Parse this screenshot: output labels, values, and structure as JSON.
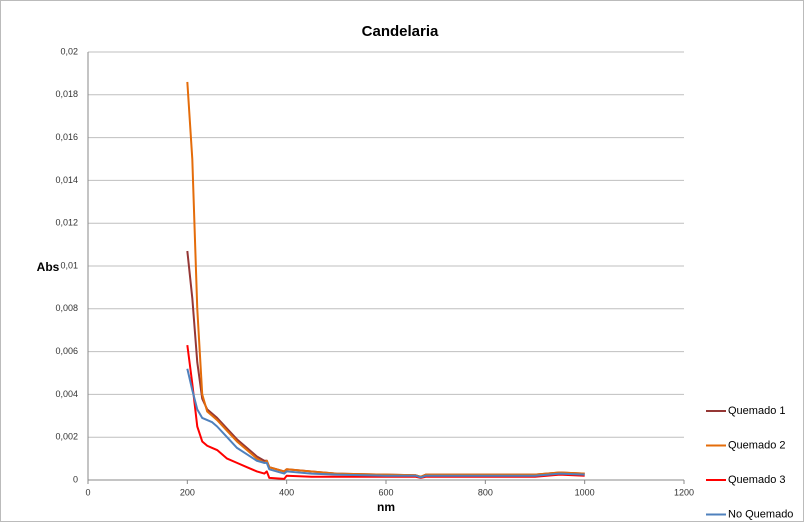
{
  "chart_data": {
    "type": "line",
    "title": "Candelaria",
    "xlabel": "nm",
    "ylabel": "Abs",
    "x": [
      200,
      210,
      220,
      230,
      240,
      250,
      260,
      280,
      300,
      320,
      340,
      355,
      360,
      365,
      395,
      400,
      450,
      500,
      600,
      660,
      670,
      680,
      700,
      800,
      900,
      950,
      1000
    ],
    "series": [
      {
        "name": "Quemado 1",
        "color": "#953735",
        "values": [
          0.0107,
          0.0085,
          0.0055,
          0.0038,
          0.0033,
          0.0031,
          0.0029,
          0.0024,
          0.0019,
          0.0015,
          0.0011,
          0.0009,
          0.0009,
          0.0006,
          0.0004,
          0.0005,
          0.0004,
          0.0003,
          0.00025,
          0.00022,
          0.00015,
          0.00025,
          0.00025,
          0.00025,
          0.00025,
          0.00035,
          0.0003
        ]
      },
      {
        "name": "Quemado 2",
        "color": "#e46c0a",
        "values": [
          0.0186,
          0.015,
          0.008,
          0.004,
          0.0032,
          0.003,
          0.0028,
          0.0023,
          0.0018,
          0.0014,
          0.001,
          0.0008,
          0.0009,
          0.0006,
          0.0004,
          0.0005,
          0.0004,
          0.0003,
          0.00025,
          0.00022,
          0.00015,
          0.00025,
          0.00025,
          0.00025,
          0.00025,
          0.00035,
          0.0003
        ]
      },
      {
        "name": "Quemado 3",
        "color": "#ff0000",
        "values": [
          0.0063,
          0.0045,
          0.0025,
          0.0018,
          0.0016,
          0.0015,
          0.0014,
          0.001,
          0.0008,
          0.0006,
          0.0004,
          0.0003,
          0.0004,
          0.0001,
          5e-05,
          0.0002,
          0.00015,
          0.00015,
          0.00015,
          0.00015,
          0.0001,
          0.00015,
          0.00015,
          0.00015,
          0.00015,
          0.00025,
          0.0002
        ]
      },
      {
        "name": "No Quemado",
        "color": "#4f81bd",
        "values": [
          0.0052,
          0.0042,
          0.0033,
          0.0029,
          0.0028,
          0.0027,
          0.0025,
          0.002,
          0.0015,
          0.0012,
          0.0009,
          0.0008,
          0.0008,
          0.0005,
          0.0003,
          0.0004,
          0.0003,
          0.00025,
          0.0002,
          0.0002,
          0.00012,
          0.0002,
          0.0002,
          0.0002,
          0.0002,
          0.0003,
          0.00025
        ]
      }
    ],
    "xlim": [
      0,
      1200
    ],
    "xticks": [
      0,
      200,
      400,
      600,
      800,
      1000,
      1200
    ],
    "ylim": [
      0,
      0.02
    ],
    "yticks": [
      0,
      {
        "value": 0.002,
        "label": "0,002"
      },
      {
        "value": 0.004,
        "label": "0,004"
      },
      {
        "value": 0.006,
        "label": "0,006"
      },
      {
        "value": 0.008,
        "label": "0,008"
      },
      {
        "value": 0.01,
        "label": "0,01"
      },
      {
        "value": 0.012,
        "label": "0,012"
      },
      {
        "value": 0.014,
        "label": "0,014"
      },
      {
        "value": 0.016,
        "label": "0,016"
      },
      {
        "value": 0.018,
        "label": "0,018"
      },
      {
        "value": 0.02,
        "label": "0,02"
      }
    ],
    "grid": true,
    "legend": "right"
  }
}
